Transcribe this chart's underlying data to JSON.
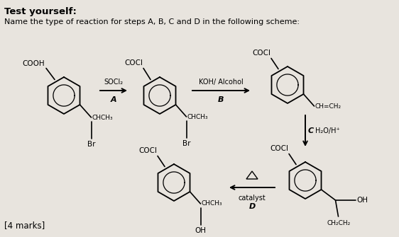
{
  "title": "Test yourself:",
  "subtitle": "Name the type of reaction for steps A, B, C and D in the following scheme:",
  "bg_color": "#e8e4de",
  "text_color": "#000000",
  "marks": "[4 marks]",
  "arrow_A_label": "SOCl₂",
  "arrow_A_sublabel": "A",
  "arrow_B_label": "KOH/ Alcohol",
  "arrow_B_sublabel": "B",
  "arrow_C_label": "H₂O/H⁺",
  "arrow_C_sublabel": "C",
  "arrow_D_label": "catalyst",
  "arrow_D_sublabel": "D",
  "arrow_D_heat": "Δ"
}
